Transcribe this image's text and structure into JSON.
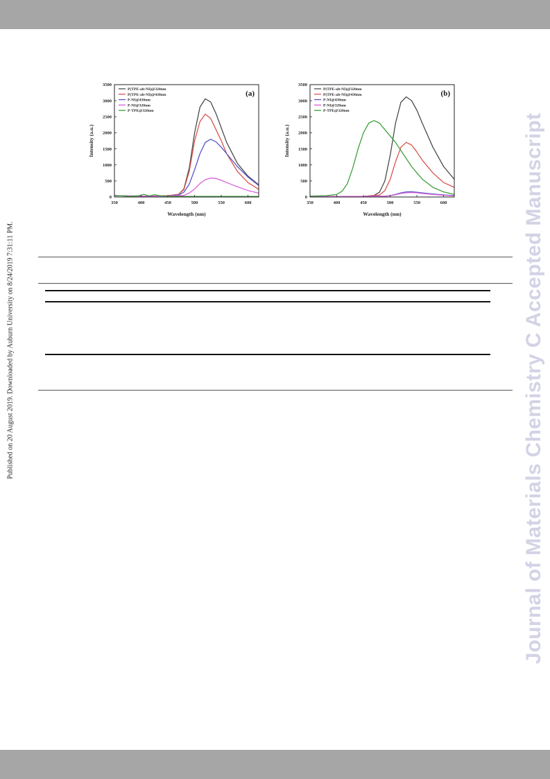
{
  "side_note": "Published on 20 August 2019. Downloaded by Auburn University on 8/24/2019 7:31:11 PM.",
  "watermark": "Journal of Materials Chemistry C Accepted Manuscript",
  "colors": {
    "bar": "#a6a6a6",
    "watermark": "#d3d3e6"
  },
  "chart_data": [
    {
      "type": "line",
      "panel_label": "(a)",
      "xlabel": "Wavelength (nm)",
      "ylabel": "Intensity (a.u.)",
      "xlim": [
        350,
        620
      ],
      "ylim": [
        0,
        3500
      ],
      "xticks": [
        350,
        400,
        450,
        500,
        550,
        600
      ],
      "yticks": [
        0,
        500,
        1000,
        1500,
        2000,
        2500,
        3000,
        3500
      ],
      "legend_position": "top-left",
      "series": [
        {
          "name": "P(TPE-alt-NI)@320nm",
          "color": "#4a4a4a",
          "x": [
            350,
            380,
            420,
            450,
            470,
            480,
            490,
            500,
            510,
            520,
            530,
            540,
            550,
            560,
            580,
            600,
            620
          ],
          "y": [
            40,
            30,
            30,
            40,
            80,
            250,
            900,
            2000,
            2800,
            3060,
            2960,
            2600,
            2150,
            1700,
            1050,
            650,
            380
          ]
        },
        {
          "name": "P(TPE-alt-NI)@430nm",
          "color": "#d9534f",
          "x": [
            350,
            380,
            420,
            450,
            470,
            480,
            490,
            500,
            510,
            520,
            530,
            540,
            550,
            560,
            580,
            600,
            620
          ],
          "y": [
            40,
            30,
            30,
            40,
            80,
            230,
            800,
            1750,
            2350,
            2580,
            2450,
            2100,
            1750,
            1350,
            800,
            450,
            240
          ]
        },
        {
          "name": "P-NI@430nm",
          "color": "#5555c8",
          "x": [
            350,
            400,
            450,
            470,
            480,
            490,
            500,
            510,
            520,
            530,
            540,
            550,
            560,
            580,
            600,
            620
          ],
          "y": [
            40,
            30,
            30,
            60,
            150,
            400,
            850,
            1350,
            1700,
            1800,
            1720,
            1550,
            1350,
            950,
            620,
            360
          ]
        },
        {
          "name": "P-NI@320nm",
          "color": "#d95fd9",
          "x": [
            350,
            400,
            450,
            480,
            490,
            500,
            510,
            520,
            530,
            540,
            550,
            560,
            580,
            600,
            620
          ],
          "y": [
            40,
            30,
            30,
            50,
            120,
            250,
            420,
            540,
            590,
            580,
            520,
            450,
            320,
            200,
            120
          ]
        },
        {
          "name": "P-TPE@320nm",
          "color": "#3ca03c",
          "x": [
            350,
            380,
            395,
            405,
            415,
            425,
            435,
            450,
            470,
            500,
            550,
            620
          ],
          "y": [
            50,
            20,
            40,
            80,
            35,
            70,
            40,
            20,
            20,
            20,
            20,
            20
          ]
        }
      ]
    },
    {
      "type": "line",
      "panel_label": "(b)",
      "xlabel": "Wavelength (nm)",
      "ylabel": "Intensity (a.u.)",
      "xlim": [
        350,
        620
      ],
      "ylim": [
        0,
        3500
      ],
      "xticks": [
        350,
        400,
        450,
        500,
        550,
        600
      ],
      "yticks": [
        0,
        500,
        1000,
        1500,
        2000,
        2500,
        3000,
        3500
      ],
      "legend_position": "top-left",
      "series": [
        {
          "name": "P(TPE-alt-NI)@320nm",
          "color": "#4a4a4a",
          "x": [
            350,
            400,
            450,
            470,
            480,
            490,
            500,
            510,
            520,
            530,
            540,
            550,
            560,
            580,
            600,
            620
          ],
          "y": [
            20,
            20,
            20,
            50,
            150,
            500,
            1300,
            2300,
            2950,
            3120,
            3000,
            2700,
            2300,
            1550,
            950,
            550
          ]
        },
        {
          "name": "P(TPE-alt-NI)@430nm",
          "color": "#d9534f",
          "x": [
            350,
            400,
            450,
            480,
            490,
            500,
            510,
            520,
            530,
            540,
            550,
            560,
            580,
            600,
            620
          ],
          "y": [
            20,
            20,
            20,
            60,
            200,
            550,
            1100,
            1550,
            1700,
            1620,
            1400,
            1150,
            750,
            450,
            300
          ]
        },
        {
          "name": "P-NI@430nm",
          "color": "#5555c8",
          "x": [
            350,
            450,
            490,
            500,
            510,
            520,
            530,
            540,
            550,
            560,
            580,
            600,
            620
          ],
          "y": [
            20,
            20,
            25,
            45,
            80,
            130,
            160,
            165,
            150,
            130,
            95,
            65,
            45
          ]
        },
        {
          "name": "P-NI@320nm",
          "color": "#d95fd9",
          "x": [
            350,
            450,
            490,
            500,
            510,
            520,
            530,
            540,
            550,
            560,
            580,
            600,
            620
          ],
          "y": [
            20,
            20,
            25,
            40,
            70,
            110,
            135,
            140,
            130,
            110,
            80,
            55,
            35
          ]
        },
        {
          "name": "P-TPE@320nm",
          "color": "#3ca03c",
          "x": [
            350,
            380,
            400,
            410,
            420,
            430,
            440,
            450,
            460,
            470,
            480,
            490,
            500,
            510,
            520,
            530,
            540,
            550,
            560,
            580,
            600,
            620
          ],
          "y": [
            30,
            40,
            80,
            180,
            420,
            900,
            1500,
            2000,
            2300,
            2380,
            2300,
            2100,
            1900,
            1700,
            1450,
            1200,
            950,
            750,
            560,
            300,
            160,
            80
          ]
        }
      ]
    }
  ]
}
